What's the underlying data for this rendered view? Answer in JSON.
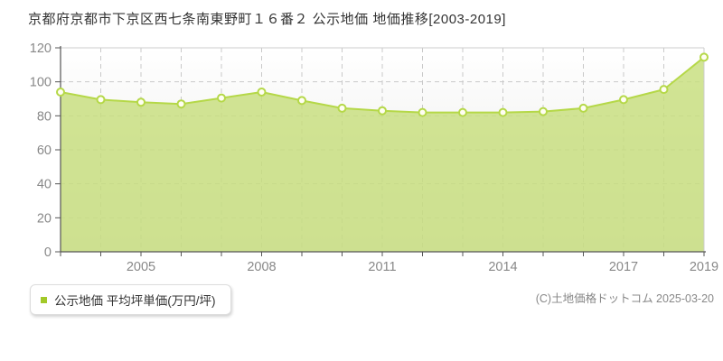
{
  "header": {
    "title": "京都府京都市下京区西七条南東野町１６番２ 公示地価 地価推移[2003-2019]"
  },
  "legend": {
    "label": "公示地価 平均坪単価(万円/坪)",
    "marker_color": "#a2c928"
  },
  "footer": {
    "copyright": "(C)土地価格ドットコム 2025-03-20"
  },
  "chart_data": {
    "type": "area",
    "title": "京都府京都市下京区西七条南東野町１６番２ 公示地価 地価推移[2003-2019]",
    "series_name": "公示地価 平均坪単価(万円/坪)",
    "x": [
      2003,
      2004,
      2005,
      2006,
      2007,
      2008,
      2009,
      2010,
      2011,
      2012,
      2013,
      2014,
      2015,
      2016,
      2017,
      2018,
      2019
    ],
    "values": [
      94,
      89.5,
      88,
      87,
      90.5,
      94,
      89,
      84.5,
      83,
      82,
      82,
      82,
      82.5,
      84.5,
      89.5,
      95.5,
      114.5
    ],
    "xlabel": "",
    "ylabel": "万円/坪",
    "ylim": [
      0,
      120
    ],
    "yticks": [
      0,
      20,
      40,
      60,
      80,
      100,
      120
    ],
    "xtick_labels": [
      "2005",
      "2008",
      "2011",
      "2014",
      "2017",
      "2019"
    ],
    "xtick_indices": [
      2,
      5,
      8,
      11,
      14,
      16
    ],
    "grid": true,
    "grid_style": "dashed",
    "legend_position": "bottom-left",
    "colors": {
      "area_fill": "#c7de7d",
      "line": "#b5d848",
      "marker_fill": "#fffef2",
      "marker_stroke": "#b5d848",
      "grid": "#c9c9c9",
      "axis": "#555555",
      "plot_border": "#cccccc",
      "tick_label": "#888888",
      "plot_bg_top": "#ffffff",
      "plot_bg_bottom": "#e9e9e7"
    }
  }
}
